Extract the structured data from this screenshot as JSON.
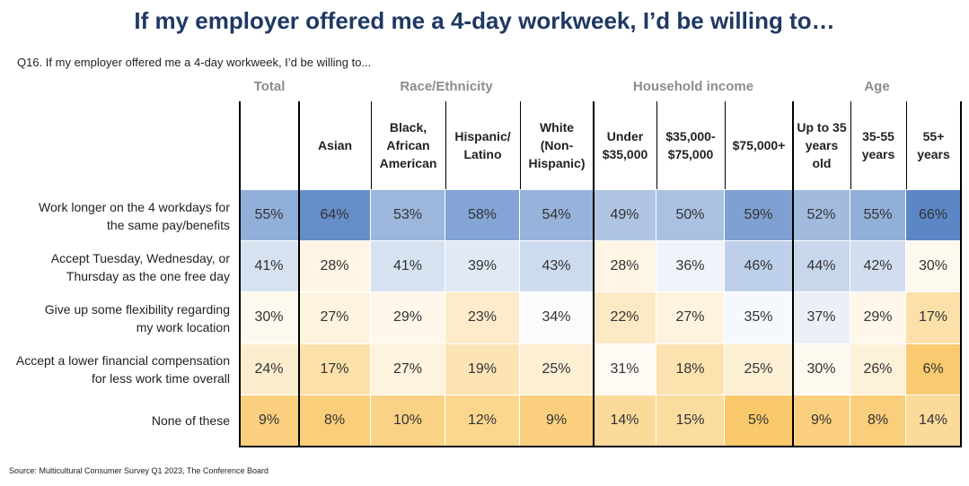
{
  "title": "If my employer offered me a 4-day workweek, I’d be willing to…",
  "question": "Q16. If my employer offered me a 4-day workweek, I’d be willing to...",
  "source": "Source: Multicultural Consumer Survey Q1 2023, The Conference Board",
  "groups": [
    "Total",
    "Race/Ethnicity",
    "Household income",
    "Age"
  ],
  "chart_data": {
    "type": "table",
    "title": "If my employer offered me a 4-day workweek, I’d be willing to…",
    "column_groups": [
      {
        "name": "Total",
        "columns": [
          ""
        ]
      },
      {
        "name": "Race/Ethnicity",
        "columns": [
          "Asian",
          "Black, African American",
          "Hispanic/ Latino",
          "White (Non- Hispanic)"
        ]
      },
      {
        "name": "Household income",
        "columns": [
          "Under $35,000",
          "$35,000- $75,000",
          "$75,000+"
        ]
      },
      {
        "name": "Age",
        "columns": [
          "Up to 35 years old",
          "35-55 years",
          "55+ years"
        ]
      }
    ],
    "columns": [
      "",
      "Asian",
      "Black,\nAfrican\nAmerican",
      "Hispanic/\nLatino",
      "White\n(Non-\nHispanic)",
      "Under\n$35,000",
      "$35,000-\n$75,000",
      "$75,000+",
      "Up to 35\nyears\nold",
      "35-55\nyears",
      "55+\nyears"
    ],
    "rows": [
      {
        "label": "Work longer on the 4 workdays for\nthe same pay/benefits",
        "values": [
          55,
          64,
          53,
          58,
          54,
          49,
          50,
          59,
          52,
          55,
          66
        ]
      },
      {
        "label": "Accept Tuesday, Wednesday, or\nThursday as the one free day",
        "values": [
          41,
          28,
          41,
          39,
          43,
          28,
          36,
          46,
          44,
          42,
          30
        ]
      },
      {
        "label": "Give up some flexibility regarding\nmy work location",
        "values": [
          30,
          27,
          29,
          23,
          34,
          22,
          27,
          35,
          37,
          29,
          17
        ]
      },
      {
        "label": "Accept a lower financial compensation\nfor less work time overall",
        "values": [
          24,
          17,
          27,
          19,
          25,
          31,
          18,
          25,
          30,
          26,
          6
        ]
      },
      {
        "label": "None of these",
        "values": [
          9,
          8,
          10,
          12,
          9,
          14,
          15,
          5,
          9,
          8,
          14
        ]
      }
    ],
    "value_suffix": "%",
    "colors": {
      "high": "#5b87c6",
      "mid": "#ffffff",
      "low": "#f9c86a"
    }
  }
}
